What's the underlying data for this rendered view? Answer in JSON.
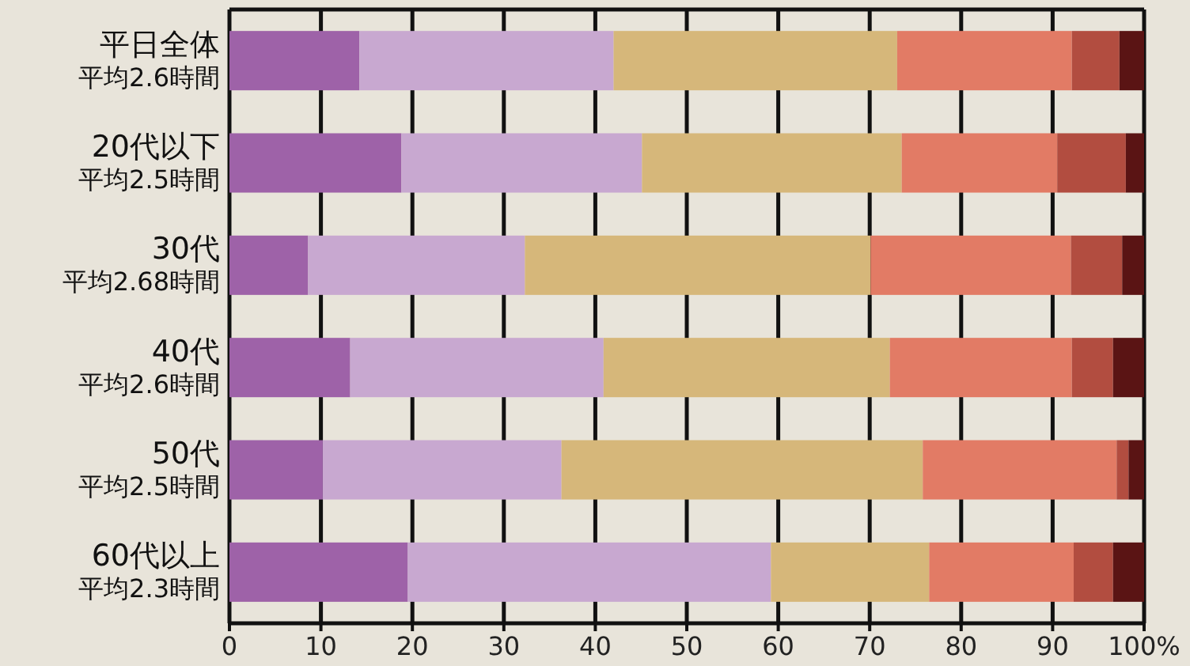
{
  "chart_data": {
    "type": "bar",
    "orientation": "horizontal",
    "stacked": true,
    "grid": "x",
    "categories": [
      "平日全体",
      "20代以下",
      "30代",
      "40代",
      "50代",
      "60代以上"
    ],
    "annotations": [
      "平均2.6時間",
      "平均2.5時間",
      "平均2.68時間",
      "平均2.6時間",
      "平均2.5時間",
      "平均2.3時間"
    ],
    "xlim": [
      0,
      100
    ],
    "xticks": [
      0,
      10,
      20,
      30,
      40,
      50,
      60,
      70,
      80,
      90,
      {
        "value": 100,
        "label": "100%"
      }
    ],
    "series": [
      {
        "color": "#9e62a8",
        "values": [
          14.2,
          18.8,
          8.6,
          13.2,
          10.2,
          19.5
        ]
      },
      {
        "color": "#c8a8d0",
        "values": [
          27.8,
          26.3,
          23.7,
          27.7,
          26.1,
          39.7
        ]
      },
      {
        "color": "#d6b77a",
        "values": [
          31.0,
          28.4,
          37.8,
          31.3,
          39.5,
          17.3
        ]
      },
      {
        "color": "#e27b65",
        "values": [
          19.1,
          17.0,
          21.9,
          19.9,
          21.2,
          15.8
        ]
      },
      {
        "color": "#b24d40",
        "values": [
          5.2,
          7.5,
          5.6,
          4.5,
          1.3,
          4.3
        ]
      },
      {
        "color": "#5a1414",
        "values": [
          2.7,
          2.0,
          2.4,
          3.4,
          1.7,
          3.4
        ]
      }
    ]
  }
}
